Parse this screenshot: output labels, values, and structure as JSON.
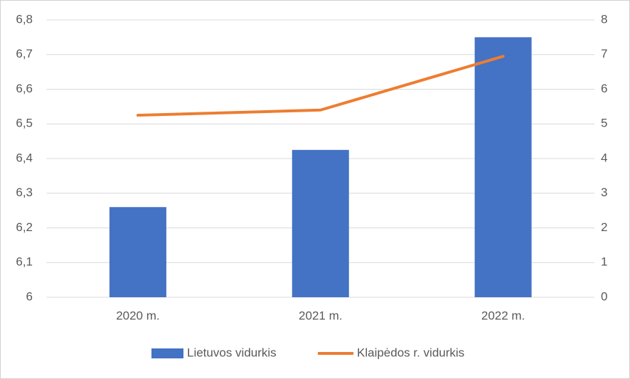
{
  "chart_data": {
    "type": "bar",
    "categories": [
      "2020 m.",
      "2021 m.",
      "2022 m."
    ],
    "series": [
      {
        "name": "Lietuvos vidurkis",
        "type": "bar",
        "color": "#4472c4",
        "values": [
          6.26,
          6.425,
          6.75
        ]
      },
      {
        "name": "Klaipėdos r. vidurkis",
        "type": "line",
        "axis": "y2",
        "color": "#ed7d31",
        "values": [
          5.25,
          5.4,
          6.95
        ]
      }
    ],
    "ylim": [
      6,
      6.8
    ],
    "yticks": [
      6,
      {
        "value": 6.1,
        "label": "6,1"
      },
      {
        "value": 6.2,
        "label": "6,2"
      },
      {
        "value": 6.3,
        "label": "6,3"
      },
      {
        "value": 6.4,
        "label": "6,4"
      },
      {
        "value": 6.5,
        "label": "6,5"
      },
      {
        "value": 6.6,
        "label": "6,6"
      },
      {
        "value": 6.7,
        "label": "6,7"
      },
      {
        "value": 6.8,
        "label": "6,8"
      }
    ],
    "y2lim": [
      0,
      8
    ],
    "y2ticks": [
      0,
      1,
      2,
      3,
      4,
      5,
      6,
      7,
      8
    ],
    "grid": true,
    "legend": "bottom"
  }
}
